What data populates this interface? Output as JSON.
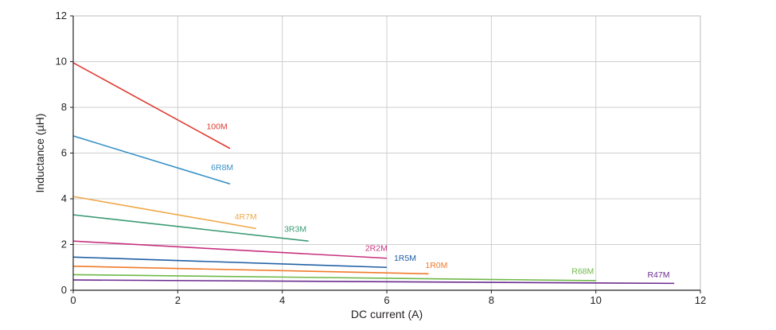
{
  "chart_data": {
    "type": "line",
    "xlabel": "DC current (A)",
    "ylabel": "Inductance (µH)",
    "xlim": [
      0,
      12
    ],
    "ylim": [
      0,
      12
    ],
    "x_ticks": [
      "0",
      "2",
      "4",
      "6",
      "8",
      "10",
      "12"
    ],
    "y_ticks": [
      "0",
      "2",
      "4",
      "6",
      "8",
      "10",
      "12"
    ],
    "grid": true,
    "legend": "inline labels",
    "series": [
      {
        "name": "100M",
        "color": "#e03c31",
        "x": [
          0,
          3.0
        ],
        "y": [
          9.95,
          6.2
        ],
        "label_at": [
          2.75,
          7.05
        ]
      },
      {
        "name": "6R8M",
        "color": "#3a93c8",
        "x": [
          0,
          3.0
        ],
        "y": [
          6.75,
          4.65
        ],
        "label_at": [
          2.85,
          5.25
        ]
      },
      {
        "name": "4R7M",
        "color": "#f0a94a",
        "x": [
          0,
          3.5
        ],
        "y": [
          4.1,
          2.7
        ],
        "label_at": [
          3.3,
          3.1
        ]
      },
      {
        "name": "3R3M",
        "color": "#3a9a74",
        "x": [
          0,
          4.5
        ],
        "y": [
          3.3,
          2.15
        ],
        "label_at": [
          4.25,
          2.55
        ]
      },
      {
        "name": "2R2M",
        "color": "#c7317f",
        "x": [
          0,
          6.0
        ],
        "y": [
          2.15,
          1.4
        ],
        "label_at": [
          5.8,
          1.72
        ]
      },
      {
        "name": "1R5M",
        "color": "#1f5fa5",
        "x": [
          0,
          6.0
        ],
        "y": [
          1.45,
          1.0
        ],
        "label_at": [
          6.35,
          1.28
        ]
      },
      {
        "name": "1R0M",
        "color": "#f07a2a",
        "x": [
          0,
          6.8
        ],
        "y": [
          1.05,
          0.72
        ],
        "label_at": [
          6.95,
          0.98
        ]
      },
      {
        "name": "R68M",
        "color": "#6fb848",
        "x": [
          0,
          10.0
        ],
        "y": [
          0.68,
          0.42
        ],
        "label_at": [
          9.75,
          0.72
        ]
      },
      {
        "name": "R47M",
        "color": "#6b2c8f",
        "x": [
          0,
          11.5
        ],
        "y": [
          0.45,
          0.3
        ],
        "label_at": [
          11.2,
          0.55
        ]
      }
    ]
  }
}
